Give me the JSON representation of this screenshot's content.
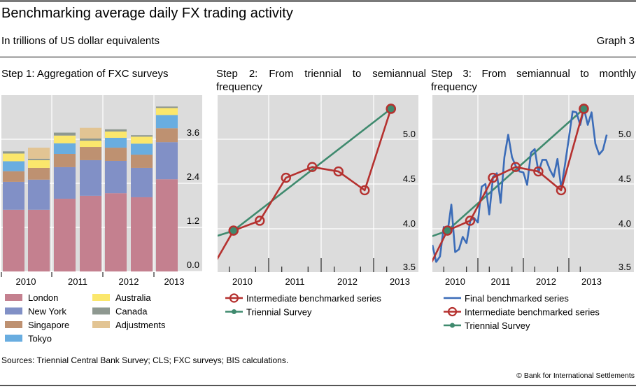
{
  "header": {
    "title": "Benchmarking average daily FX trading activity",
    "subtitle": "In trillions of US dollar equivalents",
    "graph_number": "Graph 3"
  },
  "footer": {
    "sources": "Sources: Triennial Central Bank Survey; CLS; FXC surveys; BIS calculations.",
    "copyright": "© Bank for International Settlements"
  },
  "colors": {
    "plot_bg": "#dcdcdc",
    "grid": "#ffffff",
    "london": "#c4808f",
    "new_york": "#8190c6",
    "singapore": "#be9171",
    "tokyo": "#69ade0",
    "australia": "#fbe76c",
    "canada": "#8e9890",
    "adjustments": "#e2c493",
    "intermediate": "#b5312f",
    "triennial": "#3f8a6e",
    "final": "#3b6cb8"
  },
  "chart_data": [
    {
      "id": "step1",
      "type": "bar",
      "stacked": true,
      "title": "Step 1: Aggregation of FXC surveys",
      "xlabel": "",
      "ylabel": "",
      "ylim": [
        0,
        4.6
      ],
      "yticks": [
        0.0,
        1.2,
        2.4,
        3.6
      ],
      "ytick_labels": [
        "0.0",
        "1.2",
        "2.4",
        "3.6"
      ],
      "yaxis_side": "right",
      "grid": true,
      "year_labels": [
        "2010",
        "2011",
        "2012",
        "2013"
      ],
      "categories": [
        "2010 H1",
        "2010 H2",
        "2011 H1",
        "2011 H2",
        "2012 H1",
        "2012 H2",
        "2013 H1"
      ],
      "series": [
        {
          "name": "London",
          "key": "london",
          "values": [
            1.68,
            1.68,
            1.98,
            2.06,
            2.13,
            2.02,
            2.51
          ]
        },
        {
          "name": "New York",
          "key": "new_york",
          "values": [
            0.76,
            0.82,
            0.86,
            0.97,
            0.88,
            0.8,
            1.01
          ]
        },
        {
          "name": "Singapore",
          "key": "singapore",
          "values": [
            0.29,
            0.32,
            0.36,
            0.36,
            0.36,
            0.36,
            0.38
          ]
        },
        {
          "name": "Tokyo",
          "key": "tokyo",
          "values": [
            0.27,
            0.0,
            0.29,
            0.0,
            0.27,
            0.3,
            0.36
          ]
        },
        {
          "name": "Australia",
          "key": "australia",
          "values": [
            0.21,
            0.21,
            0.21,
            0.17,
            0.17,
            0.19,
            0.19
          ]
        },
        {
          "name": "Canada",
          "key": "canada",
          "values": [
            0.06,
            0.04,
            0.08,
            0.06,
            0.06,
            0.04,
            0.04
          ]
        },
        {
          "name": "Adjustments",
          "key": "adjustments",
          "values": [
            0.0,
            0.3,
            0.0,
            0.29,
            0.0,
            0.0,
            0.0
          ]
        }
      ],
      "legend": {
        "placement": "bottom",
        "columns": [
          [
            "London",
            "New York",
            "Singapore",
            "Tokyo"
          ],
          [
            "Australia",
            "Canada",
            "Adjustments"
          ]
        ]
      }
    },
    {
      "id": "step2",
      "type": "line",
      "title": "Step 2: From triennial to semiannual frequency",
      "xlabel": "",
      "ylabel": "",
      "xlim": [
        2010.0,
        2013.83
      ],
      "ylim": [
        3.5,
        5.47
      ],
      "yticks": [
        3.5,
        4.0,
        4.5,
        5.0
      ],
      "ytick_labels": [
        "3.5",
        "4.0",
        "4.5",
        "5.0"
      ],
      "yaxis_side": "right",
      "xtick_labels": [
        "2010",
        "2011",
        "2012",
        "2013"
      ],
      "grid": true,
      "series": [
        {
          "name": "Triennial Survey",
          "key": "triennial",
          "marker": "filled-circle",
          "x": [
            2009.5,
            2010.33,
            2013.33
          ],
          "y": [
            3.83,
            3.98,
            5.34
          ],
          "marker_x": [
            2010.33,
            2013.33
          ]
        },
        {
          "name": "Intermediate benchmarked series",
          "key": "intermediate",
          "marker": "open-circle",
          "x": [
            2009.83,
            2010.33,
            2010.83,
            2011.33,
            2011.83,
            2012.33,
            2012.83,
            2013.33
          ],
          "y": [
            3.47,
            3.98,
            4.09,
            4.57,
            4.69,
            4.64,
            4.43,
            5.34
          ]
        }
      ],
      "legend": {
        "placement": "bottom",
        "entries": [
          "Intermediate benchmarked series",
          "Triennial Survey"
        ]
      }
    },
    {
      "id": "step3",
      "type": "line",
      "title": "Step 3: From semiannual to monthly frequency",
      "xlabel": "",
      "ylabel": "",
      "xlim": [
        2010.0,
        2014.4
      ],
      "ylim": [
        3.5,
        5.47
      ],
      "yticks": [
        3.5,
        4.0,
        4.5,
        5.0
      ],
      "ytick_labels": [
        "3.5",
        "4.0",
        "4.5",
        "5.0"
      ],
      "yaxis_side": "right",
      "xtick_labels": [
        "2010",
        "2011",
        "2012",
        "2013"
      ],
      "grid": true,
      "series": [
        {
          "name": "Final benchmarked series",
          "key": "final",
          "marker": "none",
          "x_start": 2010.0,
          "x_step_months": 1,
          "y": [
            3.82,
            3.63,
            3.69,
            4.02,
            3.96,
            4.27,
            3.74,
            3.77,
            3.91,
            3.84,
            4.09,
            4.12,
            4.07,
            4.47,
            4.5,
            4.16,
            4.58,
            4.62,
            4.29,
            4.8,
            5.05,
            4.8,
            4.7,
            4.64,
            4.63,
            4.49,
            4.85,
            4.89,
            4.63,
            4.77,
            4.77,
            4.66,
            4.58,
            4.78,
            4.45,
            4.72,
            5.01,
            5.31,
            5.3,
            5.16,
            5.34,
            5.16,
            5.3,
            4.95,
            4.83,
            4.88,
            5.05
          ]
        },
        {
          "name": "Intermediate benchmarked series",
          "key": "intermediate",
          "marker": "open-circle",
          "x": [
            2009.83,
            2010.33,
            2010.83,
            2011.33,
            2011.83,
            2012.33,
            2012.83,
            2013.33
          ],
          "y": [
            3.47,
            3.98,
            4.09,
            4.57,
            4.69,
            4.64,
            4.43,
            5.34
          ]
        },
        {
          "name": "Triennial Survey",
          "key": "triennial",
          "marker": "filled-circle",
          "x": [
            2009.5,
            2010.33,
            2013.33
          ],
          "y": [
            3.83,
            3.98,
            5.34
          ],
          "marker_x": [
            2010.33,
            2013.33
          ]
        }
      ],
      "legend": {
        "placement": "bottom",
        "entries": [
          "Final benchmarked series",
          "Intermediate benchmarked series",
          "Triennial Survey"
        ]
      }
    }
  ]
}
